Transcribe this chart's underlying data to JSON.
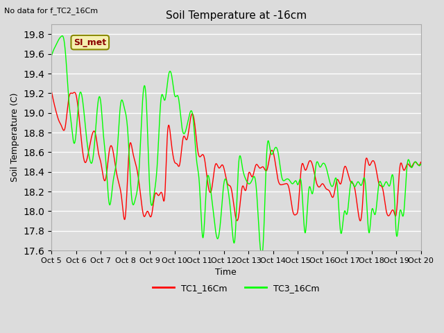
{
  "title": "Soil Temperature at -16cm",
  "xlabel": "Time",
  "ylabel": "Soil Temperature (C)",
  "note": "No data for f_TC2_16Cm",
  "legend_label": "SI_met",
  "ylim": [
    17.6,
    19.9
  ],
  "xlim": [
    0,
    15
  ],
  "series_labels": [
    "TC1_16Cm",
    "TC3_16Cm"
  ],
  "series_colors": [
    "red",
    "lime"
  ],
  "background_color": "#dcdcdc",
  "plot_bg_color": "#dcdcdc",
  "x_ticks": [
    "Oct 5",
    "Oct 6",
    "Oct 7",
    "Oct 8",
    "Oct 9",
    "Oct 10",
    "Oct 11",
    "Oct 12",
    "Oct 13",
    "Oct 14",
    "Oct 15",
    "Oct 16",
    "Oct 17",
    "Oct 18",
    "Oct 19",
    "Oct 20"
  ],
  "tc1": [
    [
      0.0,
      19.22
    ],
    [
      0.1,
      19.1
    ],
    [
      0.2,
      19.0
    ],
    [
      0.3,
      18.92
    ],
    [
      0.4,
      18.87
    ],
    [
      0.55,
      18.85
    ],
    [
      0.7,
      19.15
    ],
    [
      0.85,
      19.2
    ],
    [
      1.0,
      19.18
    ],
    [
      1.1,
      19.0
    ],
    [
      1.2,
      18.75
    ],
    [
      1.35,
      18.5
    ],
    [
      1.5,
      18.6
    ],
    [
      1.65,
      18.78
    ],
    [
      1.8,
      18.77
    ],
    [
      1.9,
      18.6
    ],
    [
      2.0,
      18.5
    ],
    [
      2.1,
      18.35
    ],
    [
      2.2,
      18.33
    ],
    [
      2.35,
      18.62
    ],
    [
      2.5,
      18.61
    ],
    [
      2.6,
      18.45
    ],
    [
      2.7,
      18.32
    ],
    [
      2.85,
      18.13
    ],
    [
      3.0,
      17.95
    ],
    [
      3.15,
      18.62
    ],
    [
      3.3,
      18.6
    ],
    [
      3.45,
      18.45
    ],
    [
      3.6,
      18.2
    ],
    [
      3.75,
      17.95
    ],
    [
      3.9,
      18.0
    ],
    [
      4.05,
      17.95
    ],
    [
      4.2,
      18.17
    ],
    [
      4.35,
      18.16
    ],
    [
      4.5,
      18.17
    ],
    [
      4.6,
      18.16
    ],
    [
      4.7,
      18.75
    ],
    [
      4.85,
      18.73
    ],
    [
      5.0,
      18.5
    ],
    [
      5.1,
      18.48
    ],
    [
      5.2,
      18.47
    ],
    [
      5.35,
      18.75
    ],
    [
      5.5,
      18.73
    ],
    [
      5.65,
      18.95
    ],
    [
      5.8,
      18.92
    ],
    [
      5.95,
      18.6
    ],
    [
      6.1,
      18.57
    ],
    [
      6.2,
      18.55
    ],
    [
      6.35,
      18.28
    ],
    [
      6.5,
      18.22
    ],
    [
      6.65,
      18.47
    ],
    [
      6.8,
      18.44
    ],
    [
      6.95,
      18.47
    ],
    [
      7.0,
      18.44
    ],
    [
      7.15,
      18.28
    ],
    [
      7.3,
      18.23
    ],
    [
      7.45,
      17.98
    ],
    [
      7.6,
      17.95
    ],
    [
      7.75,
      18.25
    ],
    [
      7.9,
      18.22
    ],
    [
      8.0,
      18.38
    ],
    [
      8.15,
      18.35
    ],
    [
      8.3,
      18.47
    ],
    [
      8.45,
      18.44
    ],
    [
      8.6,
      18.45
    ],
    [
      8.75,
      18.42
    ],
    [
      8.9,
      18.6
    ],
    [
      9.05,
      18.55
    ],
    [
      9.2,
      18.32
    ],
    [
      9.35,
      18.27
    ],
    [
      9.5,
      18.28
    ],
    [
      9.65,
      18.23
    ],
    [
      9.8,
      18.0
    ],
    [
      9.95,
      17.97
    ],
    [
      10.0,
      18.0
    ],
    [
      10.15,
      18.45
    ],
    [
      10.3,
      18.42
    ],
    [
      10.45,
      18.5
    ],
    [
      10.6,
      18.47
    ],
    [
      10.75,
      18.3
    ],
    [
      10.9,
      18.25
    ],
    [
      11.0,
      18.28
    ],
    [
      11.15,
      18.23
    ],
    [
      11.3,
      18.2
    ],
    [
      11.45,
      18.15
    ],
    [
      11.6,
      18.32
    ],
    [
      11.75,
      18.28
    ],
    [
      11.9,
      18.45
    ],
    [
      12.0,
      18.42
    ],
    [
      12.15,
      18.3
    ],
    [
      12.3,
      18.25
    ],
    [
      12.45,
      18.0
    ],
    [
      12.6,
      17.97
    ],
    [
      12.75,
      18.5
    ],
    [
      12.9,
      18.47
    ],
    [
      13.0,
      18.5
    ],
    [
      13.15,
      18.47
    ],
    [
      13.3,
      18.28
    ],
    [
      13.45,
      18.23
    ],
    [
      13.6,
      18.0
    ],
    [
      13.75,
      17.97
    ],
    [
      13.9,
      18.0
    ],
    [
      14.0,
      17.97
    ],
    [
      14.15,
      18.45
    ],
    [
      14.3,
      18.42
    ],
    [
      14.45,
      18.48
    ],
    [
      14.6,
      18.45
    ],
    [
      14.75,
      18.5
    ],
    [
      14.9,
      18.47
    ],
    [
      15.0,
      18.5
    ]
  ],
  "tc3": [
    [
      0.0,
      19.58
    ],
    [
      0.1,
      19.65
    ],
    [
      0.2,
      19.7
    ],
    [
      0.3,
      19.75
    ],
    [
      0.4,
      19.78
    ],
    [
      0.5,
      19.75
    ],
    [
      0.6,
      19.5
    ],
    [
      0.7,
      19.13
    ],
    [
      0.8,
      18.9
    ],
    [
      0.9,
      18.7
    ],
    [
      1.0,
      18.8
    ],
    [
      1.1,
      19.12
    ],
    [
      1.25,
      19.15
    ],
    [
      1.4,
      18.8
    ],
    [
      1.55,
      18.53
    ],
    [
      1.65,
      18.5
    ],
    [
      1.75,
      18.7
    ],
    [
      1.9,
      19.13
    ],
    [
      2.0,
      19.11
    ],
    [
      2.1,
      18.8
    ],
    [
      2.2,
      18.53
    ],
    [
      2.35,
      18.07
    ],
    [
      2.5,
      18.3
    ],
    [
      2.65,
      18.55
    ],
    [
      2.8,
      19.08
    ],
    [
      2.95,
      19.06
    ],
    [
      3.1,
      18.8
    ],
    [
      3.25,
      18.15
    ],
    [
      3.4,
      18.12
    ],
    [
      3.55,
      18.4
    ],
    [
      3.7,
      19.13
    ],
    [
      3.85,
      19.11
    ],
    [
      4.0,
      18.18
    ],
    [
      4.15,
      18.15
    ],
    [
      4.3,
      18.5
    ],
    [
      4.45,
      19.15
    ],
    [
      4.6,
      19.13
    ],
    [
      4.75,
      19.38
    ],
    [
      4.9,
      19.35
    ],
    [
      5.0,
      19.18
    ],
    [
      5.15,
      19.16
    ],
    [
      5.3,
      18.85
    ],
    [
      5.45,
      18.82
    ],
    [
      5.6,
      18.98
    ],
    [
      5.75,
      18.95
    ],
    [
      5.9,
      18.5
    ],
    [
      6.0,
      18.3
    ],
    [
      6.15,
      17.73
    ],
    [
      6.3,
      18.28
    ],
    [
      6.45,
      18.25
    ],
    [
      6.6,
      17.93
    ],
    [
      6.75,
      17.72
    ],
    [
      6.9,
      18.0
    ],
    [
      7.0,
      18.28
    ],
    [
      7.15,
      18.25
    ],
    [
      7.3,
      17.93
    ],
    [
      7.45,
      17.72
    ],
    [
      7.6,
      18.48
    ],
    [
      7.75,
      18.45
    ],
    [
      7.9,
      18.32
    ],
    [
      8.0,
      18.28
    ],
    [
      8.15,
      18.32
    ],
    [
      8.3,
      18.28
    ],
    [
      8.45,
      17.72
    ],
    [
      8.6,
      17.68
    ],
    [
      8.75,
      18.63
    ],
    [
      8.9,
      18.6
    ],
    [
      9.05,
      18.63
    ],
    [
      9.2,
      18.6
    ],
    [
      9.35,
      18.35
    ],
    [
      9.5,
      18.32
    ],
    [
      9.65,
      18.32
    ],
    [
      9.8,
      18.28
    ],
    [
      9.95,
      18.3
    ],
    [
      10.0,
      18.27
    ],
    [
      10.15,
      18.28
    ],
    [
      10.3,
      17.78
    ],
    [
      10.45,
      18.22
    ],
    [
      10.6,
      18.18
    ],
    [
      10.75,
      18.48
    ],
    [
      10.9,
      18.45
    ],
    [
      11.0,
      18.48
    ],
    [
      11.15,
      18.45
    ],
    [
      11.3,
      18.3
    ],
    [
      11.45,
      18.27
    ],
    [
      11.6,
      18.28
    ],
    [
      11.75,
      17.78
    ],
    [
      11.9,
      18.0
    ],
    [
      12.0,
      17.97
    ],
    [
      12.15,
      18.28
    ],
    [
      12.3,
      18.25
    ],
    [
      12.45,
      18.3
    ],
    [
      12.6,
      18.27
    ],
    [
      12.75,
      18.28
    ],
    [
      12.9,
      17.78
    ],
    [
      13.0,
      18.0
    ],
    [
      13.15,
      17.97
    ],
    [
      13.3,
      18.28
    ],
    [
      13.45,
      18.25
    ],
    [
      13.6,
      18.3
    ],
    [
      13.75,
      18.27
    ],
    [
      13.9,
      18.28
    ],
    [
      14.0,
      17.78
    ],
    [
      14.15,
      18.0
    ],
    [
      14.3,
      17.97
    ],
    [
      14.45,
      18.48
    ],
    [
      14.6,
      18.45
    ],
    [
      14.75,
      18.5
    ],
    [
      14.9,
      18.47
    ],
    [
      15.0,
      18.48
    ]
  ]
}
